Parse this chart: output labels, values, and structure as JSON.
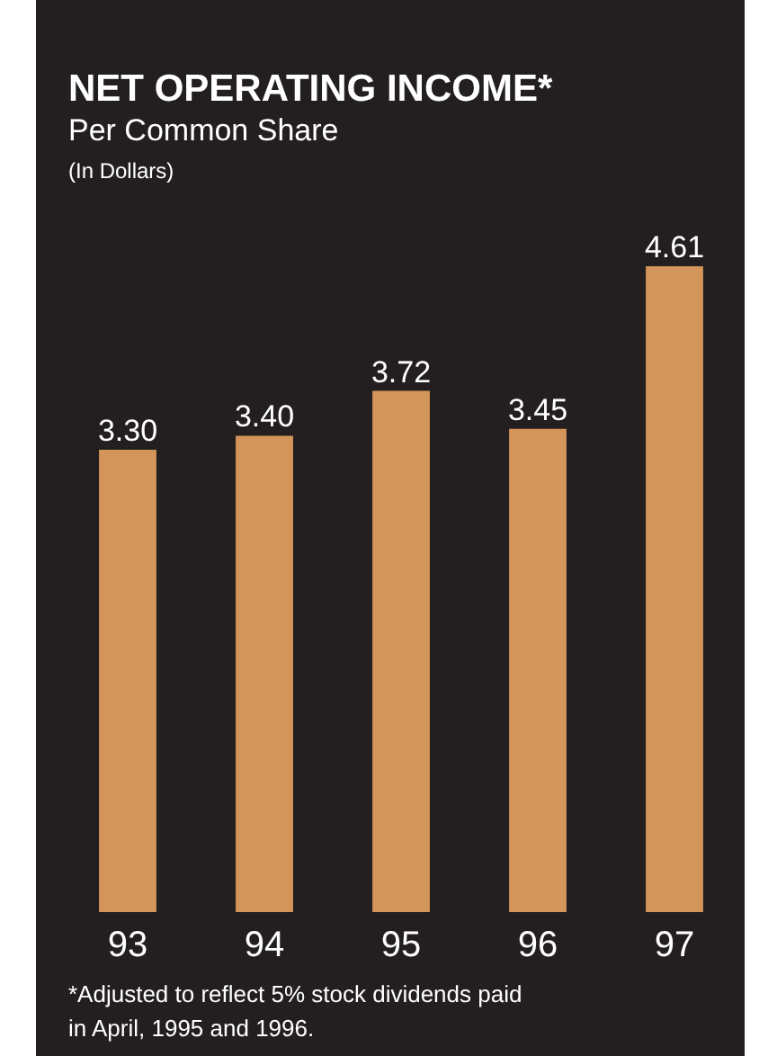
{
  "chart_data": {
    "type": "bar",
    "title": "NET OPERATING INCOME*",
    "subtitle": "Per Common Share",
    "ylabel": "(In Dollars)",
    "categories": [
      "93",
      "94",
      "95",
      "96",
      "97"
    ],
    "values": [
      3.3,
      3.4,
      3.72,
      3.45,
      4.61
    ],
    "value_labels": [
      "3.30",
      "3.40",
      "3.72",
      "3.45",
      "4.61"
    ],
    "color": "#d4955a",
    "annotations": [
      "*Adjusted to reflect 5% stock dividends paid in April, 1995 and 1996."
    ]
  }
}
